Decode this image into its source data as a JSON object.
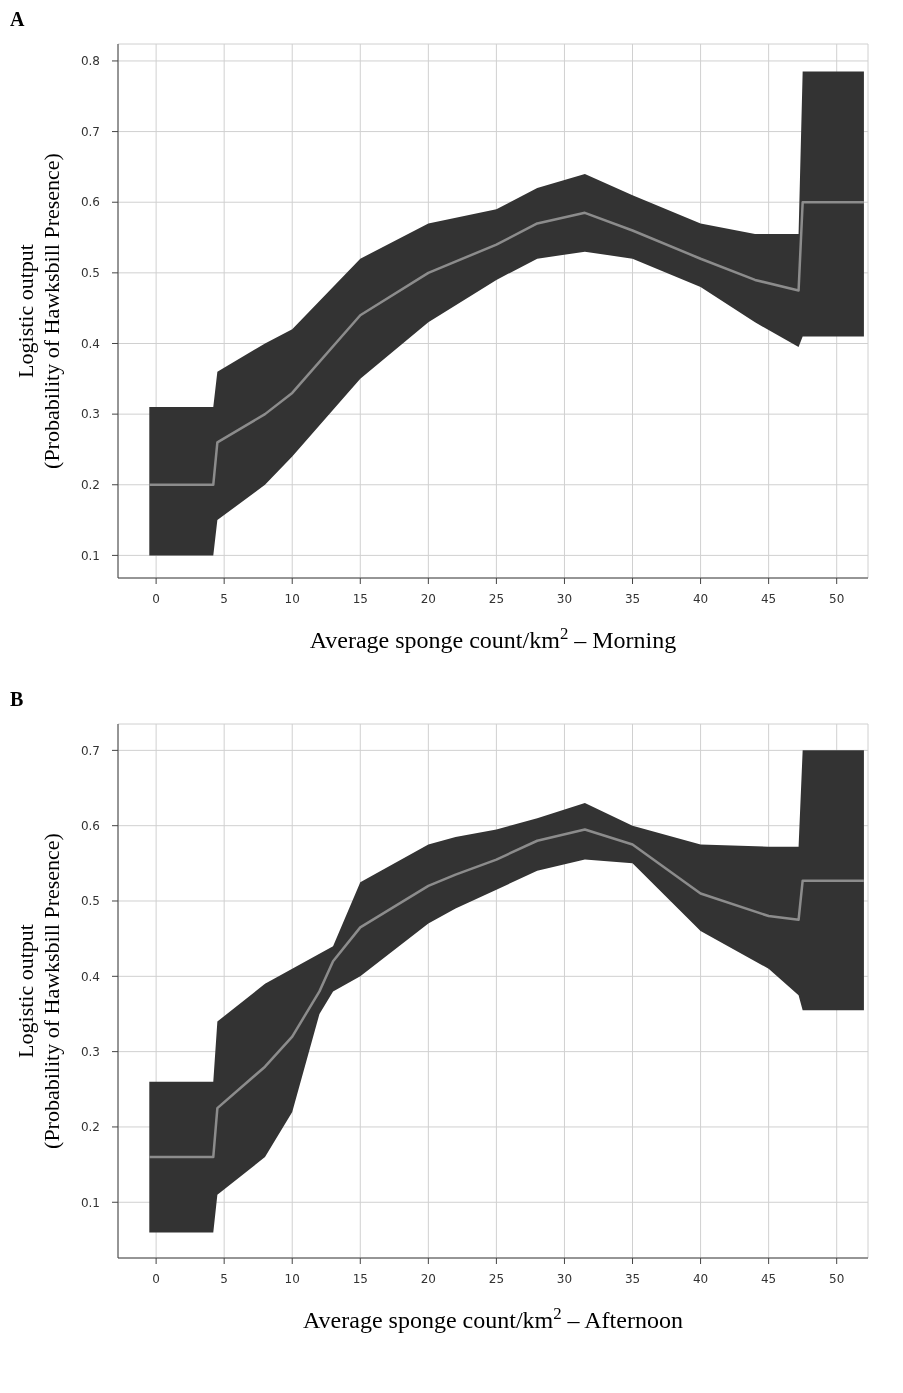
{
  "chart_data": [
    {
      "type": "line",
      "title": "A",
      "xlabel": "Average sponge count/km$^{2}$ – Morning",
      "ylabel": "Logistic output\n(Probability of Hawksbill Presence)",
      "xlim": [
        -2.8,
        52.3
      ],
      "xticks": [
        0,
        5,
        10,
        15,
        20,
        25,
        30,
        35,
        40,
        45,
        50
      ],
      "ylim": [
        0.068,
        0.824
      ],
      "yticks": [
        0.1,
        0.2,
        0.3,
        0.4,
        0.5,
        0.6,
        0.7,
        0.8
      ],
      "grid": true,
      "legend": false,
      "series": [
        {
          "color": "#8c8c8c",
          "x": [
            -0.5,
            4.2,
            4.5,
            8,
            10,
            15,
            20,
            25,
            28,
            31.5,
            35,
            40,
            44,
            47.2,
            47.5,
            52
          ],
          "values": [
            0.2,
            0.2,
            0.26,
            0.3,
            0.33,
            0.44,
            0.5,
            0.54,
            0.57,
            0.585,
            0.56,
            0.52,
            0.49,
            0.475,
            0.6,
            0.6
          ],
          "lower": [
            0.1,
            0.1,
            0.15,
            0.2,
            0.24,
            0.35,
            0.43,
            0.49,
            0.52,
            0.53,
            0.52,
            0.48,
            0.43,
            0.395,
            0.41,
            0.41
          ],
          "upper": [
            0.31,
            0.31,
            0.36,
            0.4,
            0.42,
            0.52,
            0.57,
            0.59,
            0.62,
            0.64,
            0.61,
            0.57,
            0.555,
            0.555,
            0.785,
            0.785
          ]
        }
      ]
    },
    {
      "type": "line",
      "title": "B",
      "xlabel": "Average sponge count/km$^{2}$ – Afternoon",
      "ylabel": "Logistic output\n(Probability of Hawksbill Presence)",
      "xlim": [
        -2.8,
        52.3
      ],
      "xticks": [
        0,
        5,
        10,
        15,
        20,
        25,
        30,
        35,
        40,
        45,
        50
      ],
      "ylim": [
        0.026,
        0.735
      ],
      "yticks": [
        0.1,
        0.2,
        0.3,
        0.4,
        0.5,
        0.6,
        0.7
      ],
      "grid": true,
      "legend": false,
      "series": [
        {
          "color": "#8c8c8c",
          "x": [
            -0.5,
            4.2,
            4.5,
            8,
            10,
            12,
            13,
            15,
            20,
            22,
            25,
            28,
            31.5,
            35,
            40,
            45,
            47.2,
            47.5,
            52
          ],
          "values": [
            0.16,
            0.16,
            0.225,
            0.28,
            0.32,
            0.38,
            0.42,
            0.465,
            0.52,
            0.535,
            0.555,
            0.58,
            0.595,
            0.575,
            0.51,
            0.48,
            0.475,
            0.527,
            0.527
          ],
          "lower": [
            0.06,
            0.06,
            0.11,
            0.16,
            0.22,
            0.35,
            0.38,
            0.4,
            0.47,
            0.49,
            0.515,
            0.54,
            0.555,
            0.55,
            0.46,
            0.41,
            0.375,
            0.355,
            0.355
          ],
          "upper": [
            0.26,
            0.26,
            0.34,
            0.39,
            0.41,
            0.43,
            0.44,
            0.525,
            0.575,
            0.585,
            0.595,
            0.61,
            0.63,
            0.6,
            0.575,
            0.572,
            0.572,
            0.7,
            0.7
          ]
        }
      ]
    }
  ]
}
